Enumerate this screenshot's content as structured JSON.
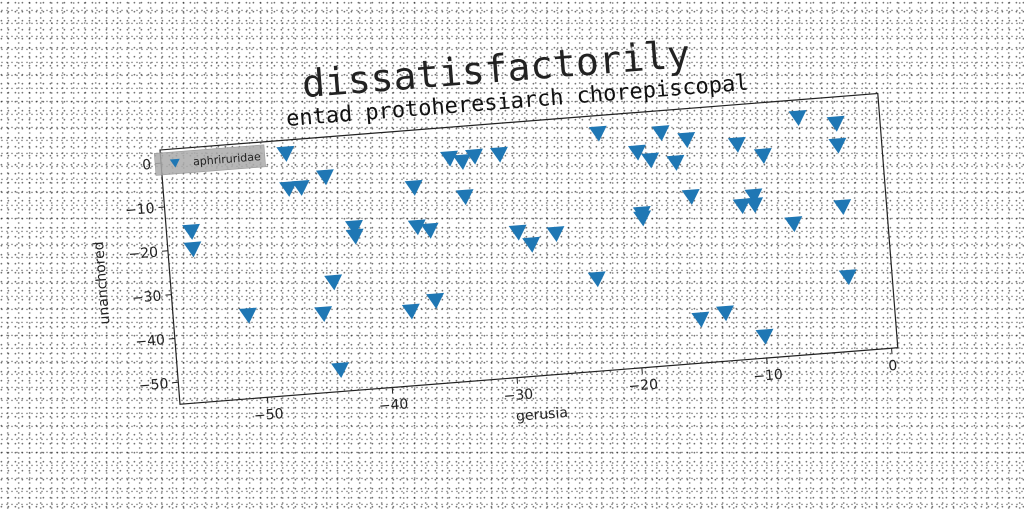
{
  "suptitle": "dissatisfactorily",
  "chart_data": {
    "type": "scatter",
    "title": "entad protoheresiarch chorepiscopal",
    "xlabel": "gerusia",
    "ylabel": "unanchored",
    "xlim": [
      -57,
      0.5
    ],
    "ylim": [
      -55,
      3
    ],
    "xticks": [
      -50,
      -40,
      -30,
      -20,
      -10,
      0
    ],
    "yticks": [
      0,
      -10,
      -20,
      -30,
      -40,
      -50
    ],
    "grid": false,
    "legend": "top-left",
    "series": [
      {
        "name": "aphriruridae",
        "color": "#1f77b4",
        "marker": "triangle-down",
        "points": [
          [
            -55,
            -16
          ],
          [
            -55,
            -20
          ],
          [
            -51,
            -36
          ],
          [
            -47,
            0
          ],
          [
            -47,
            -8
          ],
          [
            -46,
            -8
          ],
          [
            -45,
            -37
          ],
          [
            -44,
            -30
          ],
          [
            -44,
            -6
          ],
          [
            -44,
            -50
          ],
          [
            -42,
            -18
          ],
          [
            -42,
            -20
          ],
          [
            -38,
            -38
          ],
          [
            -37,
            -10
          ],
          [
            -37,
            -19
          ],
          [
            -36,
            -20
          ],
          [
            -36,
            -36
          ],
          [
            -34,
            -4
          ],
          [
            -33,
            -5
          ],
          [
            -33,
            -13
          ],
          [
            -32,
            -4
          ],
          [
            -30,
            -4
          ],
          [
            -29,
            -22
          ],
          [
            -28,
            -25
          ],
          [
            -26,
            -23
          ],
          [
            -23,
            -34
          ],
          [
            -22,
            -1
          ],
          [
            -19,
            -6
          ],
          [
            -19,
            -20
          ],
          [
            -19,
            -21
          ],
          [
            -18,
            -8
          ],
          [
            -17,
            -2
          ],
          [
            -16,
            -9
          ],
          [
            -15,
            -4
          ],
          [
            -15,
            -17
          ],
          [
            -15,
            -45
          ],
          [
            -13,
            -44
          ],
          [
            -11,
            -6
          ],
          [
            -11,
            -20
          ],
          [
            -10,
            -18
          ],
          [
            -10,
            -20
          ],
          [
            -10,
            -50
          ],
          [
            -9,
            -9
          ],
          [
            -7,
            -25
          ],
          [
            -6,
            -1
          ],
          [
            -3,
            -8
          ],
          [
            -3,
            -22
          ],
          [
            -3,
            -38
          ],
          [
            -3,
            -3
          ]
        ]
      }
    ]
  }
}
